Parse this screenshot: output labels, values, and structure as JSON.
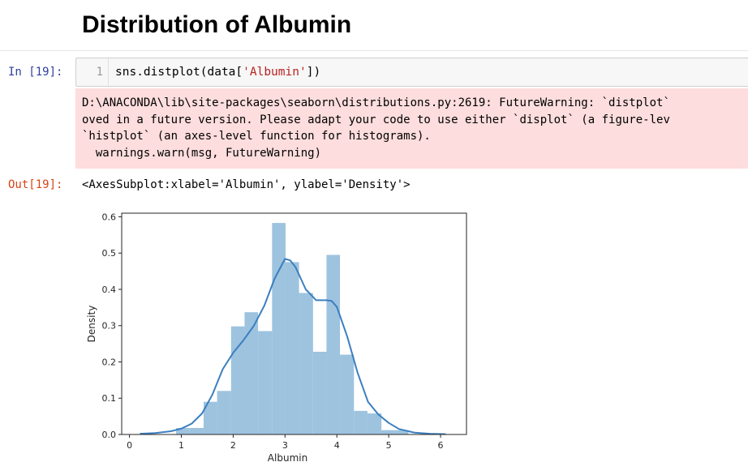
{
  "heading": "Distribution of Albumin",
  "cell": {
    "in_prompt": "In [19]:",
    "line_number": "1",
    "code_prefix": "sns.distplot(data[",
    "code_string": "'Albumin'",
    "code_suffix": "])",
    "stderr_lines": [
      "D:\\ANACONDA\\lib\\site-packages\\seaborn\\distributions.py:2619: FutureWarning: `distplot`",
      "oved in a future version. Please adapt your code to use either `displot` (a figure-lev",
      "`histplot` (an axes-level function for histograms).",
      "  warnings.warn(msg, FutureWarning)"
    ],
    "out_prompt": "Out[19]:",
    "out_repr": "<AxesSubplot:xlabel='Albumin', ylabel='Density'>"
  },
  "colors": {
    "bar_fill": "#9dc3df",
    "kde_line": "#3b7fbf",
    "stderr_bg": "#fddddd"
  },
  "chart_data": {
    "type": "bar",
    "xlabel": "Albumin",
    "ylabel": "Density",
    "xlim": [
      -0.15,
      6.5
    ],
    "ylim": [
      0,
      0.61
    ],
    "xticks": [
      0,
      1,
      2,
      3,
      4,
      5,
      6
    ],
    "yticks": [
      0.0,
      0.1,
      0.2,
      0.3,
      0.4,
      0.5,
      0.6
    ],
    "ytick_labels": [
      "0.0",
      "0.1",
      "0.2",
      "0.3",
      "0.4",
      "0.5",
      "0.6"
    ],
    "bin_edges": [
      0.9,
      1.16,
      1.43,
      1.69,
      1.96,
      2.22,
      2.48,
      2.75,
      3.01,
      3.27,
      3.54,
      3.8,
      4.06,
      4.33,
      4.59,
      4.86,
      5.12,
      5.38
    ],
    "densities": [
      0.018,
      0.018,
      0.09,
      0.12,
      0.298,
      0.337,
      0.285,
      0.583,
      0.475,
      0.39,
      0.228,
      0.495,
      0.22,
      0.065,
      0.058,
      0.012,
      0.012
    ],
    "kde": {
      "x": [
        0.2,
        0.5,
        0.8,
        1.0,
        1.2,
        1.4,
        1.6,
        1.8,
        2.0,
        2.2,
        2.4,
        2.6,
        2.8,
        3.0,
        3.1,
        3.2,
        3.4,
        3.6,
        3.8,
        3.9,
        4.0,
        4.2,
        4.4,
        4.6,
        4.8,
        5.0,
        5.2,
        5.5,
        5.8,
        6.1
      ],
      "y": [
        0.002,
        0.004,
        0.009,
        0.016,
        0.03,
        0.058,
        0.11,
        0.18,
        0.225,
        0.26,
        0.3,
        0.355,
        0.43,
        0.484,
        0.48,
        0.462,
        0.4,
        0.37,
        0.37,
        0.368,
        0.352,
        0.27,
        0.17,
        0.09,
        0.055,
        0.032,
        0.015,
        0.005,
        0.002,
        0.001
      ]
    }
  }
}
